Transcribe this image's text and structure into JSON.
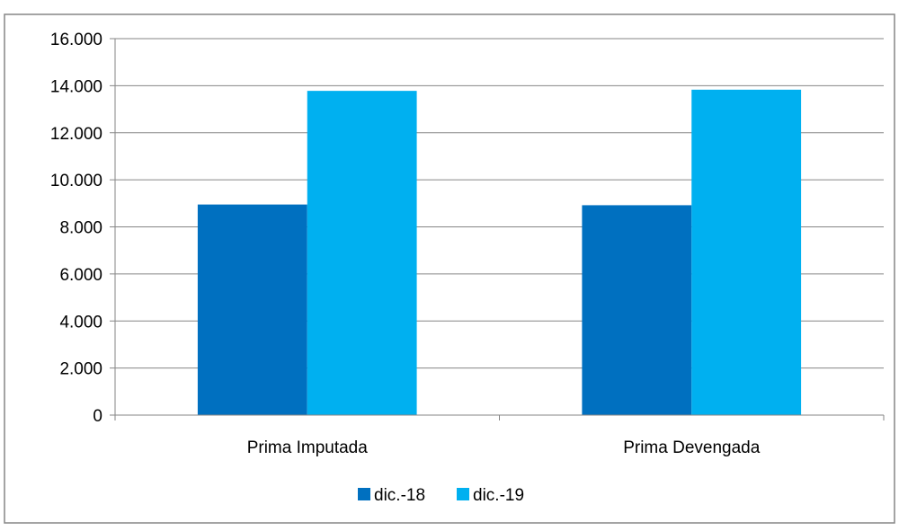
{
  "chart_data": {
    "type": "bar",
    "title": "",
    "xlabel": "",
    "ylabel": "",
    "categories": [
      "Prima Imputada",
      "Prima Devengada"
    ],
    "series": [
      {
        "name": "dic.-18",
        "values": [
          8950,
          8920
        ],
        "color": "#0070C0"
      },
      {
        "name": "dic.-19",
        "values": [
          13780,
          13830
        ],
        "color": "#00B0F0"
      }
    ],
    "ylim": [
      0,
      16000
    ],
    "yticks": [
      0,
      2000,
      4000,
      6000,
      8000,
      10000,
      12000,
      14000,
      16000
    ],
    "ytick_labels": [
      "0",
      "2.000",
      "4.000",
      "6.000",
      "8.000",
      "10.000",
      "12.000",
      "14.000",
      "16.000"
    ],
    "grid": true,
    "legend": "bottom",
    "colors": {
      "gridline": "#868686",
      "border": "#868686"
    }
  }
}
